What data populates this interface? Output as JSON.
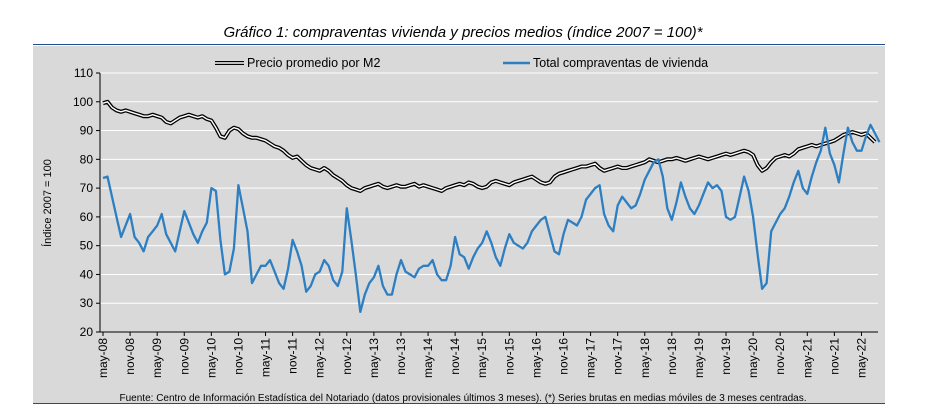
{
  "chart_data": {
    "type": "line",
    "title": "Gráfico 1: compraventas vivienda y precios medios (índice 2007 = 100)*",
    "ylabel": "Índice 2007 = 100",
    "xlabel": "",
    "ylim": [
      20,
      110
    ],
    "yticks": [
      20,
      30,
      40,
      50,
      60,
      70,
      80,
      90,
      100,
      110
    ],
    "grid": true,
    "legend_position": "top",
    "x_tick_labels": [
      "may-08",
      "nov-08",
      "may-09",
      "nov-09",
      "may-10",
      "nov-10",
      "may-11",
      "nov-11",
      "may-12",
      "nov-12",
      "may-13",
      "nov-13",
      "may-14",
      "nov-14",
      "may-15",
      "nov-15",
      "may-16",
      "nov-16",
      "may-17",
      "nov-17",
      "may-18",
      "nov-18",
      "may-19",
      "nov-19",
      "may-20",
      "nov-20",
      "may-21",
      "nov-21",
      "may-22"
    ],
    "x_start": "may-08",
    "x_frequency": "monthly",
    "series": [
      {
        "name": "Precio promedio por M2",
        "style": "double-line",
        "color": "#000000",
        "values": [
          99.5,
          100,
          98,
          97,
          96.5,
          97,
          96.5,
          96,
          95.5,
          95,
          95,
          95.5,
          95,
          94.5,
          93,
          92.5,
          93.5,
          94.5,
          95,
          95.5,
          95,
          94.5,
          95,
          94,
          93.5,
          91,
          88,
          87.5,
          90,
          91,
          90.5,
          89,
          88,
          87.5,
          87.5,
          87,
          86.5,
          85.5,
          84.5,
          84,
          83,
          81.5,
          80.5,
          81,
          79.5,
          78,
          77,
          76.5,
          76,
          77,
          76,
          74.5,
          73.5,
          72.5,
          71,
          70,
          69.5,
          69,
          70,
          70.5,
          71,
          71.5,
          70.5,
          70,
          70.5,
          71,
          70.5,
          70.5,
          71,
          71.5,
          70.5,
          71,
          70.5,
          70,
          69.5,
          69,
          70,
          70.5,
          71,
          71.5,
          71,
          72,
          71.5,
          70.5,
          70,
          70.5,
          72,
          72.5,
          72,
          71.5,
          71,
          72,
          72.5,
          73,
          73.5,
          74,
          73,
          72,
          71.5,
          72,
          74,
          75,
          75.5,
          76,
          76.5,
          77,
          77.5,
          77.5,
          78,
          78.5,
          77,
          76,
          76.5,
          77,
          77.5,
          77,
          77,
          77.5,
          78,
          78.5,
          79,
          80,
          79.5,
          79,
          79.5,
          80,
          80,
          80.5,
          80,
          79.5,
          80,
          80.5,
          81,
          80.5,
          80,
          80.5,
          81,
          81.5,
          82,
          81.5,
          82,
          82.5,
          83,
          82.5,
          81.5,
          78,
          76,
          77,
          79,
          80.5,
          81,
          81.5,
          81,
          82,
          83.5,
          84,
          84.5,
          85,
          84.5,
          85,
          85.5,
          86,
          86.5,
          87.5,
          88.5,
          89,
          89.5,
          89,
          88.5,
          89,
          87.5,
          86
        ]
      },
      {
        "name": "Total compraventas de vivienda",
        "style": "line",
        "color": "#2e7fc2",
        "values": [
          73.5,
          74,
          67,
          60,
          53,
          57,
          61,
          53,
          51,
          48,
          53,
          55,
          57,
          61,
          54,
          51,
          48,
          55,
          62,
          58,
          54,
          51,
          55,
          58,
          70,
          69,
          52,
          40,
          41,
          49,
          71,
          63,
          55,
          37,
          40,
          43,
          43,
          45,
          41,
          37,
          35,
          42,
          52,
          48,
          43,
          34,
          36,
          40,
          41,
          45,
          43,
          38,
          36,
          41,
          63,
          52,
          40,
          27,
          33,
          37,
          39,
          43,
          36,
          33,
          33,
          40,
          45,
          41,
          40,
          39,
          42,
          43,
          43,
          45,
          40,
          38,
          38,
          43,
          53,
          47,
          46,
          42,
          46,
          49,
          51,
          55,
          51,
          46,
          43,
          49,
          54,
          51,
          50,
          49,
          51,
          55,
          57,
          59,
          60,
          54,
          48,
          47,
          54,
          59,
          58,
          57,
          60,
          66,
          68,
          70,
          71,
          61,
          57,
          55,
          64,
          67,
          65,
          63,
          64,
          68,
          73,
          76,
          79,
          80,
          74,
          63,
          59,
          65,
          72,
          67,
          63,
          61,
          64,
          68,
          72,
          70,
          71,
          69,
          60,
          59,
          60,
          67,
          74,
          69,
          60,
          47,
          35,
          37,
          55,
          58,
          61,
          63,
          67,
          72,
          76,
          70,
          68,
          74,
          79,
          83,
          91,
          82,
          78,
          72,
          82,
          91,
          86,
          83,
          83,
          88,
          92,
          89,
          86
        ]
      }
    ]
  },
  "source_note": "Fuente: Centro de Información Estadística del Notariado (datos provisionales últimos 3 meses). (*) Series brutas en medias móviles de 3 meses centradas."
}
